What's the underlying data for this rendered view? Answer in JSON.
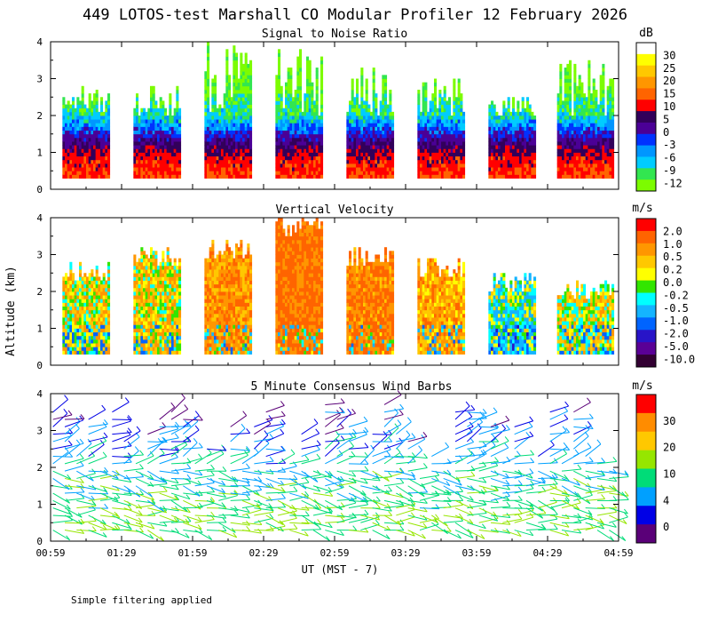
{
  "title": "449 LOTOS-test Marshall CO Modular Profiler 12 February 2026",
  "footnote": "Simple filtering applied",
  "shared_axes": {
    "ylabel": "Altitude (km)",
    "xlabel": "UT  (MST - 7)",
    "x_ticks": [
      "00:59",
      "01:29",
      "01:59",
      "02:29",
      "02:59",
      "03:29",
      "03:59",
      "04:29",
      "04:59"
    ],
    "y_ticks": [
      "0",
      "1",
      "2",
      "3",
      "4"
    ],
    "ylim": [
      0,
      4
    ],
    "xlim_minutes": [
      59,
      299
    ]
  },
  "colors": {
    "snr_scale": [
      "#7cfc00",
      "#32e650",
      "#00ccff",
      "#0096ff",
      "#0032ff",
      "#4b0096",
      "#32005a",
      "#ff0000",
      "#ff6400",
      "#ff9600",
      "#ffc800",
      "#ffff00",
      "#ffffff"
    ],
    "velocity_scale": [
      "#320032",
      "#5a0096",
      "#2814c8",
      "#0064ff",
      "#14b4ff",
      "#00ffff",
      "#32e600",
      "#ffff00",
      "#ffc800",
      "#ff9600",
      "#ff6400",
      "#ff0000"
    ],
    "wind_scale": [
      "#5a0078",
      "#0000e6",
      "#00a0ff",
      "#00dc78",
      "#96e600",
      "#ffc800",
      "#ff8c00",
      "#ff0000"
    ]
  },
  "chart_data": [
    {
      "type": "heatmap",
      "title": "Signal to Noise Ratio",
      "unit": "dB",
      "colorbar_labels": [
        "30",
        "25",
        "20",
        "15",
        "10",
        "5",
        "0",
        "-3",
        "-6",
        "-9",
        "-12"
      ],
      "segments": [
        {
          "start": "01:04",
          "end": "01:24",
          "top_km": 2.8
        },
        {
          "start": "01:34",
          "end": "01:54",
          "top_km": 2.8
        },
        {
          "start": "02:04",
          "end": "02:24",
          "top_km": 4.0
        },
        {
          "start": "02:34",
          "end": "02:54",
          "top_km": 3.9
        },
        {
          "start": "03:04",
          "end": "03:24",
          "top_km": 3.3
        },
        {
          "start": "03:34",
          "end": "03:54",
          "top_km": 3.0
        },
        {
          "start": "04:04",
          "end": "04:24",
          "top_km": 2.5
        },
        {
          "start": "04:33",
          "end": "04:57",
          "top_km": 3.5
        }
      ],
      "vertical_structure_db": [
        {
          "altitude_km": 0.3,
          "snr_db": 15
        },
        {
          "altitude_km": 0.8,
          "snr_db": 12
        },
        {
          "altitude_km": 1.2,
          "snr_db": 5
        },
        {
          "altitude_km": 1.6,
          "snr_db": -3
        },
        {
          "altitude_km": 2.0,
          "snr_db": -9
        },
        {
          "altitude_km": 2.6,
          "snr_db": -12
        }
      ]
    },
    {
      "type": "heatmap",
      "title": "Vertical Velocity",
      "unit": "m/s",
      "colorbar_labels": [
        "2.0",
        "1.0",
        "0.5",
        "0.2",
        "0.0",
        "-0.2",
        "-0.5",
        "-1.0",
        "-2.0",
        "-5.0",
        "-10.0"
      ],
      "segments": [
        {
          "start": "01:04",
          "end": "01:24",
          "top_km": 2.8,
          "typical_ms": 0.2
        },
        {
          "start": "01:34",
          "end": "01:54",
          "top_km": 3.2,
          "typical_ms": 0.3
        },
        {
          "start": "02:04",
          "end": "02:24",
          "top_km": 3.4,
          "typical_ms": 0.8
        },
        {
          "start": "02:34",
          "end": "02:54",
          "top_km": 4.0,
          "typical_ms": 1.2
        },
        {
          "start": "03:04",
          "end": "03:24",
          "top_km": 3.2,
          "typical_ms": 1.0
        },
        {
          "start": "03:34",
          "end": "03:54",
          "top_km": 2.9,
          "typical_ms": 0.6
        },
        {
          "start": "04:04",
          "end": "04:24",
          "top_km": 2.5,
          "typical_ms": -0.3
        },
        {
          "start": "04:33",
          "end": "04:57",
          "top_km": 2.3,
          "typical_ms": 0.1
        }
      ]
    },
    {
      "type": "wind_barbs",
      "title": "5 Minute Consensus Wind Barbs",
      "unit": "m/s",
      "colorbar_labels": [
        "30",
        "20",
        "10",
        "4",
        "0"
      ],
      "profile": [
        {
          "altitude_km": 0.3,
          "speed_ms": 10
        },
        {
          "altitude_km": 0.8,
          "speed_ms": 10
        },
        {
          "altitude_km": 1.2,
          "speed_ms": 9
        },
        {
          "altitude_km": 1.6,
          "speed_ms": 8
        },
        {
          "altitude_km": 2.0,
          "speed_ms": 7
        },
        {
          "altitude_km": 2.6,
          "speed_ms": 5
        },
        {
          "altitude_km": 3.2,
          "speed_ms": 3
        },
        {
          "altitude_km": 3.8,
          "speed_ms": 2
        }
      ]
    }
  ]
}
